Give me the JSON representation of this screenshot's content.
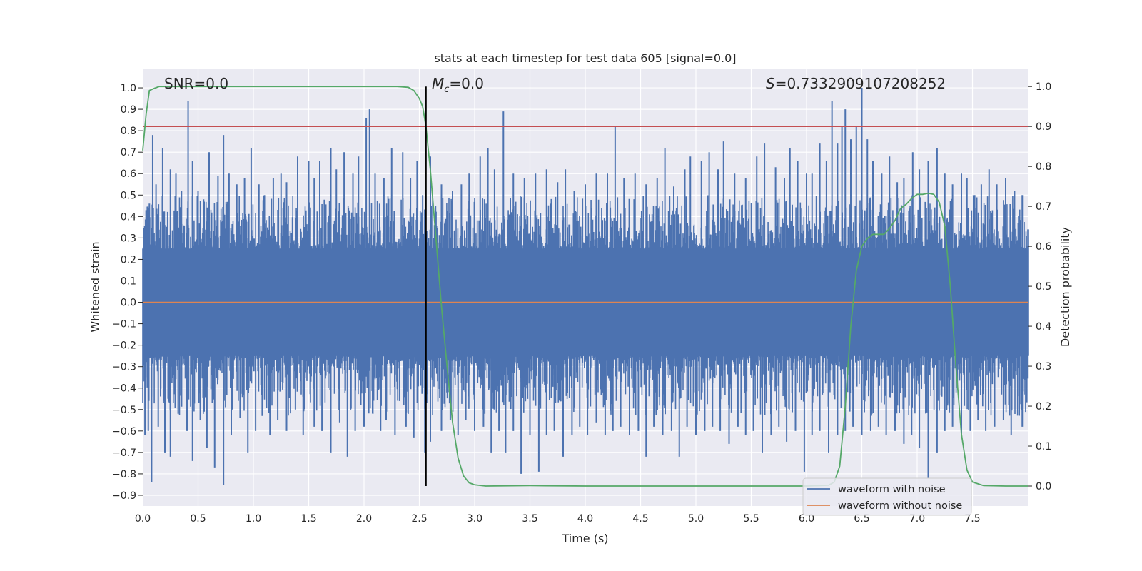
{
  "chart_data": {
    "type": "line",
    "title": "stats at each timestep for test data 605 [signal=0.0]",
    "xlabel": "Time (s)",
    "ylabel": "Whitened strain",
    "y2label": "Detection probability",
    "xlim": [
      0.0,
      8.0
    ],
    "ylim": [
      -0.95,
      1.09
    ],
    "y2lim": [
      -0.05,
      1.045
    ],
    "xticks": [
      "0.0",
      "0.5",
      "1.0",
      "1.5",
      "2.0",
      "2.5",
      "3.0",
      "3.5",
      "4.0",
      "4.5",
      "5.0",
      "5.5",
      "6.0",
      "6.5",
      "7.0",
      "7.5"
    ],
    "yticks": [
      "1.0",
      "0.9",
      "0.8",
      "0.7",
      "0.6",
      "0.5",
      "0.4",
      "0.3",
      "0.2",
      "0.1",
      "0.0",
      "-0.1",
      "-0.2",
      "-0.3",
      "-0.4",
      "-0.5",
      "-0.6",
      "-0.7",
      "-0.8",
      "-0.9"
    ],
    "y2ticks": [
      "1.0",
      "0.9",
      "0.8",
      "0.7",
      "0.6",
      "0.5",
      "0.4",
      "0.3",
      "0.2",
      "0.1",
      "0.0"
    ],
    "annotations": {
      "snr": "SNR=0.0",
      "mc_symbol": "M",
      "mc_sub": "c",
      "mc_value": "=0.0",
      "s_symbol": "S",
      "s_value": "=0.7332909107208252"
    },
    "threshold": {
      "y2": 0.9,
      "color": "#c44e52"
    },
    "marker_line": {
      "x": 2.56,
      "color": "#000000"
    },
    "series": [
      {
        "name": "waveform with noise",
        "color": "#4c72b0",
        "peaks": [
          [
            0.03,
            0.43
          ],
          [
            0.06,
            0.46
          ],
          [
            0.09,
            0.78
          ],
          [
            0.12,
            0.55
          ],
          [
            0.18,
            0.72
          ],
          [
            0.25,
            0.62
          ],
          [
            0.3,
            0.6
          ],
          [
            0.35,
            0.52
          ],
          [
            0.41,
            0.94
          ],
          [
            0.45,
            0.66
          ],
          [
            0.5,
            0.52
          ],
          [
            0.55,
            0.48
          ],
          [
            0.6,
            0.7
          ],
          [
            0.68,
            0.59
          ],
          [
            0.73,
            0.78
          ],
          [
            0.78,
            0.6
          ],
          [
            0.85,
            0.55
          ],
          [
            0.92,
            0.58
          ],
          [
            0.98,
            0.72
          ],
          [
            1.05,
            0.55
          ],
          [
            1.1,
            0.5
          ],
          [
            1.18,
            0.58
          ],
          [
            1.25,
            0.6
          ],
          [
            1.3,
            0.56
          ],
          [
            1.4,
            0.68
          ],
          [
            1.5,
            0.66
          ],
          [
            1.55,
            0.58
          ],
          [
            1.6,
            0.66
          ],
          [
            1.7,
            0.72
          ],
          [
            1.75,
            0.62
          ],
          [
            1.82,
            0.7
          ],
          [
            1.9,
            0.6
          ],
          [
            1.95,
            0.68
          ],
          [
            2.02,
            0.86
          ],
          [
            2.05,
            0.9
          ],
          [
            2.1,
            0.6
          ],
          [
            2.18,
            0.58
          ],
          [
            2.25,
            0.72
          ],
          [
            2.35,
            0.7
          ],
          [
            2.42,
            0.58
          ],
          [
            2.48,
            0.66
          ],
          [
            2.53,
            0.5
          ],
          [
            2.6,
            0.68
          ],
          [
            2.7,
            0.55
          ],
          [
            2.8,
            0.52
          ],
          [
            2.88,
            0.55
          ],
          [
            2.95,
            0.6
          ],
          [
            3.05,
            0.68
          ],
          [
            3.12,
            0.72
          ],
          [
            3.18,
            0.62
          ],
          [
            3.26,
            0.89
          ],
          [
            3.35,
            0.6
          ],
          [
            3.45,
            0.58
          ],
          [
            3.55,
            0.6
          ],
          [
            3.65,
            0.62
          ],
          [
            3.75,
            0.56
          ],
          [
            3.82,
            0.62
          ],
          [
            3.9,
            0.52
          ],
          [
            4.0,
            0.55
          ],
          [
            4.1,
            0.6
          ],
          [
            4.2,
            0.6
          ],
          [
            4.27,
            0.82
          ],
          [
            4.35,
            0.58
          ],
          [
            4.45,
            0.6
          ],
          [
            4.55,
            0.55
          ],
          [
            4.65,
            0.58
          ],
          [
            4.72,
            0.72
          ],
          [
            4.8,
            0.54
          ],
          [
            4.9,
            0.62
          ],
          [
            4.95,
            0.68
          ],
          [
            5.05,
            0.66
          ],
          [
            5.12,
            0.7
          ],
          [
            5.2,
            0.62
          ],
          [
            5.25,
            0.75
          ],
          [
            5.35,
            0.6
          ],
          [
            5.45,
            0.58
          ],
          [
            5.55,
            0.68
          ],
          [
            5.62,
            0.74
          ],
          [
            5.72,
            0.63
          ],
          [
            5.8,
            0.58
          ],
          [
            5.85,
            0.72
          ],
          [
            5.92,
            0.66
          ],
          [
            6.0,
            0.6
          ],
          [
            6.05,
            0.6
          ],
          [
            6.12,
            0.74
          ],
          [
            6.18,
            0.66
          ],
          [
            6.23,
            0.94
          ],
          [
            6.28,
            0.74
          ],
          [
            6.32,
            0.82
          ],
          [
            6.35,
            0.9
          ],
          [
            6.4,
            0.76
          ],
          [
            6.45,
            0.82
          ],
          [
            6.5,
            1.0
          ],
          [
            6.55,
            0.76
          ],
          [
            6.6,
            0.66
          ],
          [
            6.68,
            0.6
          ],
          [
            6.75,
            0.68
          ],
          [
            6.82,
            0.56
          ],
          [
            6.88,
            0.58
          ],
          [
            6.96,
            0.7
          ],
          [
            7.02,
            0.62
          ],
          [
            7.1,
            0.66
          ],
          [
            7.18,
            0.72
          ],
          [
            7.25,
            0.6
          ],
          [
            7.32,
            0.55
          ],
          [
            7.4,
            0.6
          ],
          [
            7.45,
            0.58
          ],
          [
            7.52,
            0.5
          ],
          [
            7.58,
            0.55
          ],
          [
            7.65,
            0.62
          ],
          [
            7.72,
            0.55
          ],
          [
            7.8,
            0.58
          ],
          [
            7.88,
            0.52
          ],
          [
            7.95,
            0.5
          ]
        ],
        "troughs": [
          [
            0.02,
            -0.62
          ],
          [
            0.05,
            -0.6
          ],
          [
            0.08,
            -0.84
          ],
          [
            0.14,
            -0.58
          ],
          [
            0.2,
            -0.7
          ],
          [
            0.25,
            -0.72
          ],
          [
            0.32,
            -0.52
          ],
          [
            0.4,
            -0.6
          ],
          [
            0.45,
            -0.74
          ],
          [
            0.52,
            -0.55
          ],
          [
            0.58,
            -0.68
          ],
          [
            0.65,
            -0.77
          ],
          [
            0.73,
            -0.85
          ],
          [
            0.8,
            -0.62
          ],
          [
            0.88,
            -0.54
          ],
          [
            0.95,
            -0.7
          ],
          [
            1.02,
            -0.6
          ],
          [
            1.08,
            -0.53
          ],
          [
            1.15,
            -0.62
          ],
          [
            1.22,
            -0.55
          ],
          [
            1.3,
            -0.6
          ],
          [
            1.38,
            -0.5
          ],
          [
            1.45,
            -0.62
          ],
          [
            1.55,
            -0.58
          ],
          [
            1.62,
            -0.6
          ],
          [
            1.7,
            -0.7
          ],
          [
            1.78,
            -0.56
          ],
          [
            1.85,
            -0.72
          ],
          [
            1.92,
            -0.6
          ],
          [
            2.0,
            -0.58
          ],
          [
            2.08,
            -0.52
          ],
          [
            2.15,
            -0.6
          ],
          [
            2.2,
            -0.55
          ],
          [
            2.28,
            -0.62
          ],
          [
            2.38,
            -0.58
          ],
          [
            2.45,
            -0.63
          ],
          [
            2.55,
            -0.7
          ],
          [
            2.6,
            -0.65
          ],
          [
            2.7,
            -0.6
          ],
          [
            2.78,
            -0.55
          ],
          [
            2.85,
            -0.62
          ],
          [
            2.92,
            -0.55
          ],
          [
            3.0,
            -0.6
          ],
          [
            3.08,
            -0.58
          ],
          [
            3.15,
            -0.7
          ],
          [
            3.22,
            -0.6
          ],
          [
            3.28,
            -0.7
          ],
          [
            3.35,
            -0.6
          ],
          [
            3.42,
            -0.8
          ],
          [
            3.5,
            -0.62
          ],
          [
            3.58,
            -0.79
          ],
          [
            3.65,
            -0.62
          ],
          [
            3.72,
            -0.6
          ],
          [
            3.8,
            -0.72
          ],
          [
            3.88,
            -0.62
          ],
          [
            3.95,
            -0.58
          ],
          [
            4.02,
            -0.62
          ],
          [
            4.1,
            -0.56
          ],
          [
            4.18,
            -0.62
          ],
          [
            4.25,
            -0.6
          ],
          [
            4.32,
            -0.58
          ],
          [
            4.4,
            -0.62
          ],
          [
            4.48,
            -0.6
          ],
          [
            4.55,
            -0.72
          ],
          [
            4.62,
            -0.58
          ],
          [
            4.7,
            -0.62
          ],
          [
            4.78,
            -0.6
          ],
          [
            4.85,
            -0.72
          ],
          [
            4.92,
            -0.58
          ],
          [
            5.0,
            -0.62
          ],
          [
            5.08,
            -0.6
          ],
          [
            5.15,
            -0.58
          ],
          [
            5.22,
            -0.6
          ],
          [
            5.3,
            -0.66
          ],
          [
            5.38,
            -0.58
          ],
          [
            5.45,
            -0.62
          ],
          [
            5.52,
            -0.6
          ],
          [
            5.6,
            -0.7
          ],
          [
            5.68,
            -0.62
          ],
          [
            5.75,
            -0.58
          ],
          [
            5.82,
            -0.65
          ],
          [
            5.9,
            -0.6
          ],
          [
            5.98,
            -0.79
          ],
          [
            6.05,
            -0.62
          ],
          [
            6.12,
            -0.6
          ],
          [
            6.2,
            -0.7
          ],
          [
            6.28,
            -0.62
          ],
          [
            6.35,
            -0.6
          ],
          [
            6.42,
            -0.58
          ],
          [
            6.5,
            -0.62
          ],
          [
            6.58,
            -0.6
          ],
          [
            6.65,
            -0.58
          ],
          [
            6.72,
            -0.62
          ],
          [
            6.8,
            -0.6
          ],
          [
            6.88,
            -0.66
          ],
          [
            6.95,
            -0.62
          ],
          [
            7.02,
            -0.68
          ],
          [
            7.1,
            -0.82
          ],
          [
            7.18,
            -0.7
          ],
          [
            7.25,
            -0.6
          ],
          [
            7.32,
            -0.58
          ],
          [
            7.4,
            -0.62
          ],
          [
            7.48,
            -0.6
          ],
          [
            7.55,
            -0.55
          ],
          [
            7.62,
            -0.6
          ],
          [
            7.7,
            -0.58
          ],
          [
            7.78,
            -0.55
          ],
          [
            7.85,
            -0.62
          ],
          [
            7.95,
            -0.58
          ]
        ]
      },
      {
        "name": "waveform without noise",
        "color": "#dd8452",
        "x": [
          0.0,
          8.0
        ],
        "y": [
          0.0,
          0.0
        ]
      },
      {
        "name": "",
        "axis": "right",
        "color": "#55a868",
        "x": [
          0.0,
          0.03,
          0.06,
          0.1,
          0.15,
          0.2,
          0.4,
          1.0,
          1.5,
          2.0,
          2.3,
          2.4,
          2.45,
          2.5,
          2.53,
          2.56,
          2.6,
          2.65,
          2.7,
          2.75,
          2.8,
          2.85,
          2.9,
          2.95,
          3.0,
          3.1,
          3.5,
          4.0,
          5.0,
          6.0,
          6.2,
          6.25,
          6.3,
          6.35,
          6.4,
          6.45,
          6.5,
          6.55,
          6.6,
          6.7,
          6.75,
          6.8,
          6.85,
          6.9,
          6.95,
          7.0,
          7.05,
          7.1,
          7.15,
          7.2,
          7.25,
          7.3,
          7.35,
          7.4,
          7.45,
          7.5,
          7.6,
          7.8,
          8.0
        ],
        "y": [
          0.84,
          0.93,
          0.99,
          0.995,
          1.0,
          1.0,
          1.0,
          1.0,
          1.0,
          1.0,
          1.0,
          0.998,
          0.99,
          0.97,
          0.95,
          0.9,
          0.79,
          0.62,
          0.45,
          0.3,
          0.16,
          0.07,
          0.025,
          0.008,
          0.003,
          0.0,
          0.001,
          0.0,
          0.0,
          0.0,
          0.002,
          0.01,
          0.05,
          0.2,
          0.4,
          0.54,
          0.6,
          0.62,
          0.63,
          0.63,
          0.645,
          0.665,
          0.695,
          0.705,
          0.72,
          0.73,
          0.73,
          0.733,
          0.73,
          0.71,
          0.65,
          0.5,
          0.3,
          0.13,
          0.04,
          0.01,
          0.001,
          0.0,
          0.0
        ]
      }
    ],
    "legend": {
      "loc": "lower right",
      "entries": [
        "waveform with noise",
        "waveform without noise"
      ]
    }
  }
}
